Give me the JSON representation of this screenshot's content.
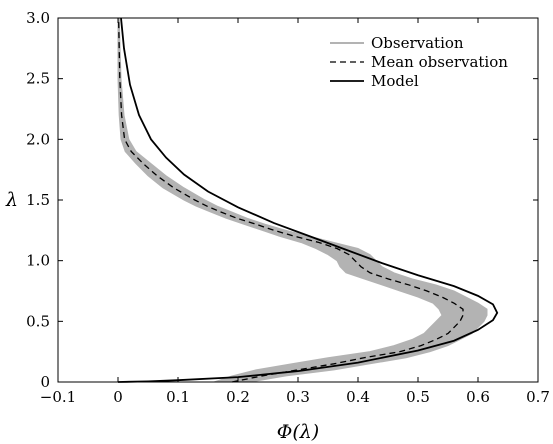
{
  "chart_data": {
    "type": "line",
    "title": "",
    "xlabel": "Φ(λ)",
    "ylabel": "λ",
    "xlim": [
      -0.1,
      0.7
    ],
    "ylim": [
      0,
      3.0
    ],
    "grid": false,
    "legend_position": "top-right",
    "x_ticks": [
      "−0.1",
      "0",
      "0.1",
      "0.2",
      "0.3",
      "0.4",
      "0.5",
      "0.6",
      "0.7"
    ],
    "y_ticks": [
      "0",
      "0.5",
      "1.0",
      "1.5",
      "2.0",
      "2.5",
      "3.0"
    ],
    "x_tick_values": [
      -0.1,
      0,
      0.1,
      0.2,
      0.3,
      0.4,
      0.5,
      0.6,
      0.7
    ],
    "y_tick_values": [
      0,
      0.5,
      1.0,
      1.5,
      2.0,
      2.5,
      3.0
    ],
    "series": [
      {
        "name": "Observation",
        "style": "band",
        "color": "#b3b3b3",
        "points": [
          {
            "y": 0.0,
            "xmin": 0.16,
            "xmax": 0.22
          },
          {
            "y": 0.05,
            "xmin": 0.19,
            "xmax": 0.28
          },
          {
            "y": 0.1,
            "xmin": 0.23,
            "xmax": 0.36
          },
          {
            "y": 0.15,
            "xmin": 0.29,
            "xmax": 0.42
          },
          {
            "y": 0.2,
            "xmin": 0.35,
            "xmax": 0.48
          },
          {
            "y": 0.25,
            "xmin": 0.42,
            "xmax": 0.52
          },
          {
            "y": 0.3,
            "xmin": 0.46,
            "xmax": 0.55
          },
          {
            "y": 0.35,
            "xmin": 0.49,
            "xmax": 0.57
          },
          {
            "y": 0.4,
            "xmin": 0.51,
            "xmax": 0.59
          },
          {
            "y": 0.45,
            "xmin": 0.52,
            "xmax": 0.6
          },
          {
            "y": 0.5,
            "xmin": 0.53,
            "xmax": 0.61
          },
          {
            "y": 0.55,
            "xmin": 0.54,
            "xmax": 0.615
          },
          {
            "y": 0.6,
            "xmin": 0.535,
            "xmax": 0.615
          },
          {
            "y": 0.65,
            "xmin": 0.525,
            "xmax": 0.6
          },
          {
            "y": 0.7,
            "xmin": 0.5,
            "xmax": 0.58
          },
          {
            "y": 0.75,
            "xmin": 0.47,
            "xmax": 0.56
          },
          {
            "y": 0.8,
            "xmin": 0.44,
            "xmax": 0.53
          },
          {
            "y": 0.85,
            "xmin": 0.41,
            "xmax": 0.49
          },
          {
            "y": 0.9,
            "xmin": 0.38,
            "xmax": 0.46
          },
          {
            "y": 0.95,
            "xmin": 0.37,
            "xmax": 0.44
          },
          {
            "y": 1.0,
            "xmin": 0.365,
            "xmax": 0.43
          },
          {
            "y": 1.05,
            "xmin": 0.35,
            "xmax": 0.42
          },
          {
            "y": 1.1,
            "xmin": 0.33,
            "xmax": 0.4
          },
          {
            "y": 1.15,
            "xmin": 0.305,
            "xmax": 0.36
          },
          {
            "y": 1.2,
            "xmin": 0.27,
            "xmax": 0.32
          },
          {
            "y": 1.25,
            "xmin": 0.24,
            "xmax": 0.28
          },
          {
            "y": 1.3,
            "xmin": 0.21,
            "xmax": 0.245
          },
          {
            "y": 1.35,
            "xmin": 0.18,
            "xmax": 0.215
          },
          {
            "y": 1.4,
            "xmin": 0.155,
            "xmax": 0.19
          },
          {
            "y": 1.45,
            "xmin": 0.13,
            "xmax": 0.165
          },
          {
            "y": 1.5,
            "xmin": 0.11,
            "xmax": 0.145
          },
          {
            "y": 1.6,
            "xmin": 0.075,
            "xmax": 0.11
          },
          {
            "y": 1.7,
            "xmin": 0.05,
            "xmax": 0.08
          },
          {
            "y": 1.8,
            "xmin": 0.03,
            "xmax": 0.055
          },
          {
            "y": 1.9,
            "xmin": 0.012,
            "xmax": 0.03
          },
          {
            "y": 2.0,
            "xmin": 0.005,
            "xmax": 0.018
          },
          {
            "y": 2.2,
            "xmin": 0.002,
            "xmax": 0.01
          },
          {
            "y": 2.5,
            "xmin": 0.0,
            "xmax": 0.005
          },
          {
            "y": 3.0,
            "xmin": 0.0,
            "xmax": 0.002
          }
        ]
      },
      {
        "name": "Mean observation",
        "style": "dashed",
        "color": "#000000",
        "points": [
          {
            "x": 0.19,
            "y": 0.0
          },
          {
            "x": 0.24,
            "y": 0.05
          },
          {
            "x": 0.3,
            "y": 0.1
          },
          {
            "x": 0.36,
            "y": 0.15
          },
          {
            "x": 0.41,
            "y": 0.2
          },
          {
            "x": 0.47,
            "y": 0.25
          },
          {
            "x": 0.505,
            "y": 0.3
          },
          {
            "x": 0.53,
            "y": 0.35
          },
          {
            "x": 0.55,
            "y": 0.4
          },
          {
            "x": 0.56,
            "y": 0.45
          },
          {
            "x": 0.57,
            "y": 0.5
          },
          {
            "x": 0.575,
            "y": 0.55
          },
          {
            "x": 0.575,
            "y": 0.6
          },
          {
            "x": 0.56,
            "y": 0.65
          },
          {
            "x": 0.54,
            "y": 0.7
          },
          {
            "x": 0.515,
            "y": 0.75
          },
          {
            "x": 0.485,
            "y": 0.8
          },
          {
            "x": 0.45,
            "y": 0.85
          },
          {
            "x": 0.42,
            "y": 0.9
          },
          {
            "x": 0.405,
            "y": 0.95
          },
          {
            "x": 0.395,
            "y": 1.0
          },
          {
            "x": 0.385,
            "y": 1.05
          },
          {
            "x": 0.365,
            "y": 1.1
          },
          {
            "x": 0.335,
            "y": 1.15
          },
          {
            "x": 0.295,
            "y": 1.2
          },
          {
            "x": 0.26,
            "y": 1.25
          },
          {
            "x": 0.23,
            "y": 1.3
          },
          {
            "x": 0.198,
            "y": 1.35
          },
          {
            "x": 0.172,
            "y": 1.4
          },
          {
            "x": 0.148,
            "y": 1.45
          },
          {
            "x": 0.128,
            "y": 1.5
          },
          {
            "x": 0.093,
            "y": 1.6
          },
          {
            "x": 0.065,
            "y": 1.7
          },
          {
            "x": 0.042,
            "y": 1.8
          },
          {
            "x": 0.022,
            "y": 1.9
          },
          {
            "x": 0.011,
            "y": 2.0
          },
          {
            "x": 0.006,
            "y": 2.2
          },
          {
            "x": 0.003,
            "y": 2.5
          },
          {
            "x": 0.001,
            "y": 3.0
          }
        ]
      },
      {
        "name": "Model",
        "style": "solid",
        "color": "#000000",
        "points": [
          {
            "x": 0.0,
            "y": 0.0
          },
          {
            "x": 0.05,
            "y": 0.005
          },
          {
            "x": 0.1,
            "y": 0.015
          },
          {
            "x": 0.2,
            "y": 0.04
          },
          {
            "x": 0.3,
            "y": 0.09
          },
          {
            "x": 0.4,
            "y": 0.16
          },
          {
            "x": 0.5,
            "y": 0.26
          },
          {
            "x": 0.56,
            "y": 0.34
          },
          {
            "x": 0.6,
            "y": 0.43
          },
          {
            "x": 0.625,
            "y": 0.51
          },
          {
            "x": 0.632,
            "y": 0.57
          },
          {
            "x": 0.625,
            "y": 0.64
          },
          {
            "x": 0.6,
            "y": 0.71
          },
          {
            "x": 0.56,
            "y": 0.79
          },
          {
            "x": 0.5,
            "y": 0.88
          },
          {
            "x": 0.44,
            "y": 0.98
          },
          {
            "x": 0.38,
            "y": 1.09
          },
          {
            "x": 0.32,
            "y": 1.2
          },
          {
            "x": 0.26,
            "y": 1.31
          },
          {
            "x": 0.2,
            "y": 1.44
          },
          {
            "x": 0.15,
            "y": 1.57
          },
          {
            "x": 0.11,
            "y": 1.71
          },
          {
            "x": 0.08,
            "y": 1.85
          },
          {
            "x": 0.055,
            "y": 2.0
          },
          {
            "x": 0.035,
            "y": 2.2
          },
          {
            "x": 0.02,
            "y": 2.45
          },
          {
            "x": 0.01,
            "y": 2.75
          },
          {
            "x": 0.005,
            "y": 3.0
          }
        ]
      }
    ]
  }
}
